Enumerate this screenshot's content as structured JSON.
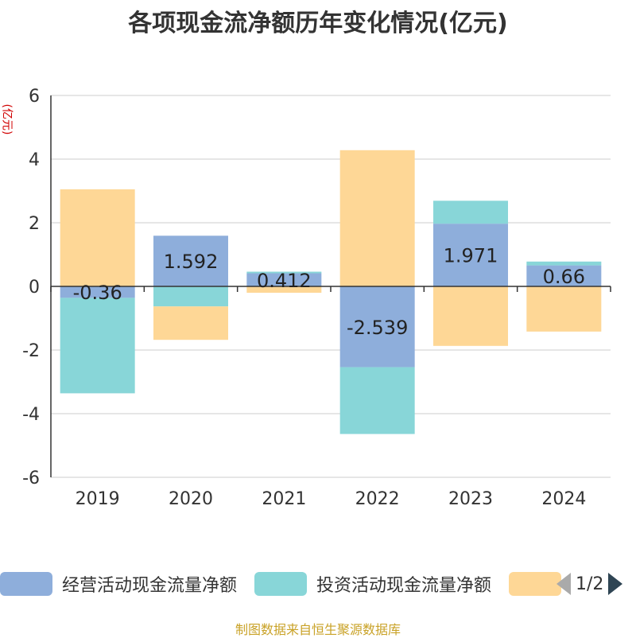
{
  "chart_data": {
    "type": "bar",
    "stacked": true,
    "title": "各项现金流净额历年变化情况(亿元)",
    "ylabel": "(亿元)",
    "categories": [
      "2019",
      "2020",
      "2021",
      "2022",
      "2023",
      "2024"
    ],
    "ylim": [
      -6,
      6
    ],
    "yticks": [
      6,
      4,
      2,
      0,
      -2,
      -4,
      -6
    ],
    "grid": true,
    "legend_position": "bottom",
    "series": [
      {
        "name": "经营活动现金流量净额",
        "color": "#8eaedb",
        "values": [
          -0.36,
          1.592,
          0.412,
          -2.539,
          1.971,
          0.66
        ],
        "labels": [
          "-0.36",
          "1.592",
          "0.412",
          "-2.539",
          "1.971",
          "0.66"
        ]
      },
      {
        "name": "投资活动现金流量净额",
        "color": "#88d6d8",
        "values": [
          -3.0,
          -0.63,
          0.05,
          -2.1,
          0.72,
          0.12
        ]
      },
      {
        "name": "",
        "color": "#fed796",
        "values": [
          3.05,
          -1.05,
          -0.2,
          4.28,
          -1.87,
          -1.42
        ]
      }
    ]
  },
  "legend": {
    "pager_text": "1/2",
    "prev_icon": "chevron-left-icon",
    "next_icon": "chevron-right-icon"
  },
  "source": "制图数据来自恒生聚源数据库"
}
